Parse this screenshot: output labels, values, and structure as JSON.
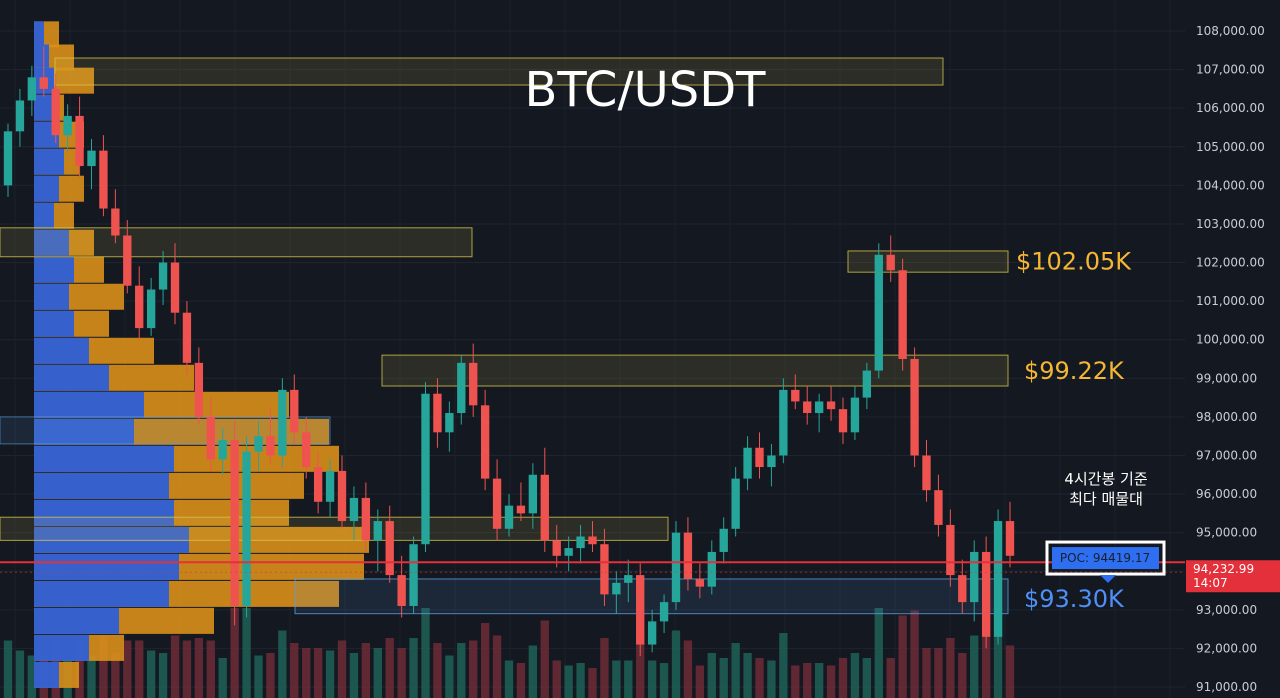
{
  "chart_data": {
    "type": "candlestick",
    "title": "BTC/USDT",
    "ylim": [
      90800,
      108400
    ],
    "y_ticks": [
      "108,000.00",
      "107,000.00",
      "106,000.00",
      "105,000.00",
      "104,000.00",
      "103,000.00",
      "102,000.00",
      "101,000.00",
      "100,000.00",
      "99,000.00",
      "98,000.00",
      "97,000.00",
      "96,000.00",
      "95,000.00",
      "94,000.00",
      "93,000.00",
      "92,000.00",
      "91,000.00"
    ],
    "y_tick_values": [
      108000,
      107000,
      106000,
      105000,
      104000,
      103000,
      102000,
      101000,
      100000,
      99000,
      98000,
      97000,
      96000,
      95000,
      94000,
      93000,
      92000,
      91000
    ],
    "last_price": {
      "value": 94232.99,
      "label": "94,232.99",
      "countdown": "14:07"
    },
    "poc": {
      "value": 94419.17,
      "label": "POC: 94419.17"
    },
    "poc_note": [
      "4시간봉 기준",
      "최다 매물대"
    ],
    "levels": [
      {
        "name": "resistance-1",
        "label": "$102.05K",
        "value": 102050,
        "color": "#f5b731"
      },
      {
        "name": "resistance-2",
        "label": "$99.22K",
        "value": 99220,
        "color": "#f5b731"
      },
      {
        "name": "support-1",
        "label": "$93.30K",
        "value": 93300,
        "color": "#4f8ff7"
      }
    ],
    "zones": [
      {
        "name": "zone-107k",
        "y_top": 107300,
        "y_bottom": 106600,
        "color": "#d4c34a"
      },
      {
        "name": "zone-102-8k",
        "y_top": 102900,
        "y_bottom": 102150,
        "color": "#d4c34a"
      },
      {
        "name": "zone-102k",
        "y_top": 102300,
        "y_bottom": 101750,
        "color": "#d4c34a"
      },
      {
        "name": "zone-99k",
        "y_top": 99600,
        "y_bottom": 98800,
        "color": "#d4c34a"
      },
      {
        "name": "zone-95k",
        "y_top": 95400,
        "y_bottom": 94800,
        "color": "#d4c34a"
      },
      {
        "name": "zone-93k",
        "y_top": 93800,
        "y_bottom": 92900,
        "color": "#5aa0e0"
      }
    ],
    "volume_profile": [
      {
        "price": 107900,
        "blue": 0.1,
        "total": 0.25
      },
      {
        "price": 107300,
        "blue": 0.15,
        "total": 0.4
      },
      {
        "price": 106700,
        "blue": 0.2,
        "total": 0.6
      },
      {
        "price": 106000,
        "blue": 0.2,
        "total": 0.3
      },
      {
        "price": 105300,
        "blue": 0.25,
        "total": 0.5
      },
      {
        "price": 104600,
        "blue": 0.3,
        "total": 0.45
      },
      {
        "price": 103900,
        "blue": 0.25,
        "total": 0.5
      },
      {
        "price": 103200,
        "blue": 0.2,
        "total": 0.4
      },
      {
        "price": 102500,
        "blue": 0.35,
        "total": 0.6
      },
      {
        "price": 101800,
        "blue": 0.4,
        "total": 0.7
      },
      {
        "price": 101100,
        "blue": 0.35,
        "total": 0.9
      },
      {
        "price": 100400,
        "blue": 0.4,
        "total": 0.75
      },
      {
        "price": 99700,
        "blue": 0.55,
        "total": 1.2
      },
      {
        "price": 99000,
        "blue": 0.75,
        "total": 1.6
      },
      {
        "price": 98300,
        "blue": 1.1,
        "total": 2.55
      },
      {
        "price": 97600,
        "blue": 1.0,
        "total": 2.95
      },
      {
        "price": 96900,
        "blue": 1.4,
        "total": 3.05
      },
      {
        "price": 96200,
        "blue": 1.35,
        "total": 2.7
      },
      {
        "price": 95500,
        "blue": 1.4,
        "total": 2.55
      },
      {
        "price": 94800,
        "blue": 1.55,
        "total": 3.35
      },
      {
        "price": 94100,
        "blue": 1.45,
        "total": 3.3
      },
      {
        "price": 93400,
        "blue": 1.35,
        "total": 3.05
      },
      {
        "price": 92700,
        "blue": 0.85,
        "total": 1.8
      },
      {
        "price": 92000,
        "blue": 0.55,
        "total": 0.9
      },
      {
        "price": 91300,
        "blue": 0.25,
        "total": 0.45
      }
    ],
    "candles": [
      [
        104000,
        105600,
        103700,
        105400
      ],
      [
        105400,
        106500,
        105000,
        106200
      ],
      [
        106200,
        107100,
        105800,
        106800
      ],
      [
        106800,
        107600,
        106300,
        106500
      ],
      [
        106500,
        106900,
        105100,
        105300
      ],
      [
        105300,
        106100,
        104900,
        105800
      ],
      [
        105800,
        106300,
        104200,
        104500
      ],
      [
        104500,
        105200,
        103900,
        104900
      ],
      [
        104900,
        105300,
        103200,
        103400
      ],
      [
        103400,
        103900,
        102500,
        102700
      ],
      [
        102700,
        103100,
        101200,
        101400
      ],
      [
        101400,
        101900,
        100000,
        100300
      ],
      [
        100300,
        101600,
        100100,
        101300
      ],
      [
        101300,
        102300,
        100900,
        102000
      ],
      [
        102000,
        102500,
        100400,
        100700
      ],
      [
        100700,
        101000,
        99100,
        99400
      ],
      [
        99400,
        99800,
        97800,
        98000
      ],
      [
        98000,
        98500,
        96600,
        96900
      ],
      [
        96900,
        97700,
        96500,
        97400
      ],
      [
        97400,
        97900,
        92600,
        93100
      ],
      [
        93100,
        97500,
        92800,
        97100
      ],
      [
        97100,
        97900,
        96600,
        97500
      ],
      [
        97500,
        98200,
        96800,
        97000
      ],
      [
        97000,
        99000,
        96700,
        98700
      ],
      [
        98700,
        99100,
        97300,
        97600
      ],
      [
        97600,
        98000,
        96400,
        96700
      ],
      [
        96700,
        97100,
        95500,
        95800
      ],
      [
        95800,
        96900,
        95400,
        96600
      ],
      [
        96600,
        97000,
        95100,
        95300
      ],
      [
        95300,
        96200,
        94800,
        95900
      ],
      [
        95900,
        96300,
        94500,
        94800
      ],
      [
        94800,
        95600,
        94000,
        95300
      ],
      [
        95300,
        95700,
        93700,
        93900
      ],
      [
        93900,
        94400,
        92800,
        93100
      ],
      [
        93100,
        94900,
        92900,
        94700
      ],
      [
        94700,
        98900,
        94500,
        98600
      ],
      [
        98600,
        99000,
        97200,
        97600
      ],
      [
        97600,
        98400,
        97100,
        98100
      ],
      [
        98100,
        99600,
        97800,
        99400
      ],
      [
        99400,
        99900,
        98000,
        98300
      ],
      [
        98300,
        98700,
        96100,
        96400
      ],
      [
        96400,
        96900,
        94800,
        95100
      ],
      [
        95100,
        96000,
        94900,
        95700
      ],
      [
        95700,
        96300,
        95300,
        95500
      ],
      [
        95500,
        96800,
        95100,
        96500
      ],
      [
        96500,
        97200,
        94500,
        94800
      ],
      [
        94800,
        95200,
        94100,
        94400
      ],
      [
        94400,
        94900,
        94000,
        94600
      ],
      [
        94600,
        95200,
        94200,
        94900
      ],
      [
        94900,
        95300,
        94500,
        94700
      ],
      [
        94700,
        95100,
        93100,
        93400
      ],
      [
        93400,
        94000,
        92900,
        93700
      ],
      [
        93700,
        94300,
        93200,
        93900
      ],
      [
        93900,
        94200,
        91800,
        92100
      ],
      [
        92100,
        93000,
        91900,
        92700
      ],
      [
        92700,
        93400,
        92400,
        93200
      ],
      [
        93200,
        95300,
        93000,
        95000
      ],
      [
        95000,
        95400,
        93500,
        93800
      ],
      [
        93800,
        94200,
        93300,
        93600
      ],
      [
        93600,
        94800,
        93400,
        94500
      ],
      [
        94500,
        95400,
        94200,
        95100
      ],
      [
        95100,
        96700,
        94900,
        96400
      ],
      [
        96400,
        97500,
        96100,
        97200
      ],
      [
        97200,
        97600,
        96400,
        96700
      ],
      [
        96700,
        97300,
        96200,
        97000
      ],
      [
        97000,
        99000,
        96800,
        98700
      ],
      [
        98700,
        99100,
        98200,
        98400
      ],
      [
        98400,
        98800,
        97800,
        98100
      ],
      [
        98100,
        98600,
        97600,
        98400
      ],
      [
        98400,
        98800,
        97900,
        98200
      ],
      [
        98200,
        98500,
        97300,
        97600
      ],
      [
        97600,
        98800,
        97400,
        98500
      ],
      [
        98500,
        99400,
        98200,
        99200
      ],
      [
        99200,
        102500,
        99000,
        102200
      ],
      [
        102200,
        102700,
        101500,
        101800
      ],
      [
        101800,
        102100,
        99200,
        99500
      ],
      [
        99500,
        99800,
        96700,
        97000
      ],
      [
        97000,
        97400,
        95800,
        96100
      ],
      [
        96100,
        96500,
        94900,
        95200
      ],
      [
        95200,
        95600,
        93600,
        93900
      ],
      [
        93900,
        94300,
        92900,
        93200
      ],
      [
        93200,
        94800,
        92700,
        94500
      ],
      [
        94500,
        94900,
        92000,
        92300
      ],
      [
        92300,
        95600,
        92100,
        95300
      ],
      [
        95300,
        95800,
        94100,
        94400
      ]
    ]
  }
}
